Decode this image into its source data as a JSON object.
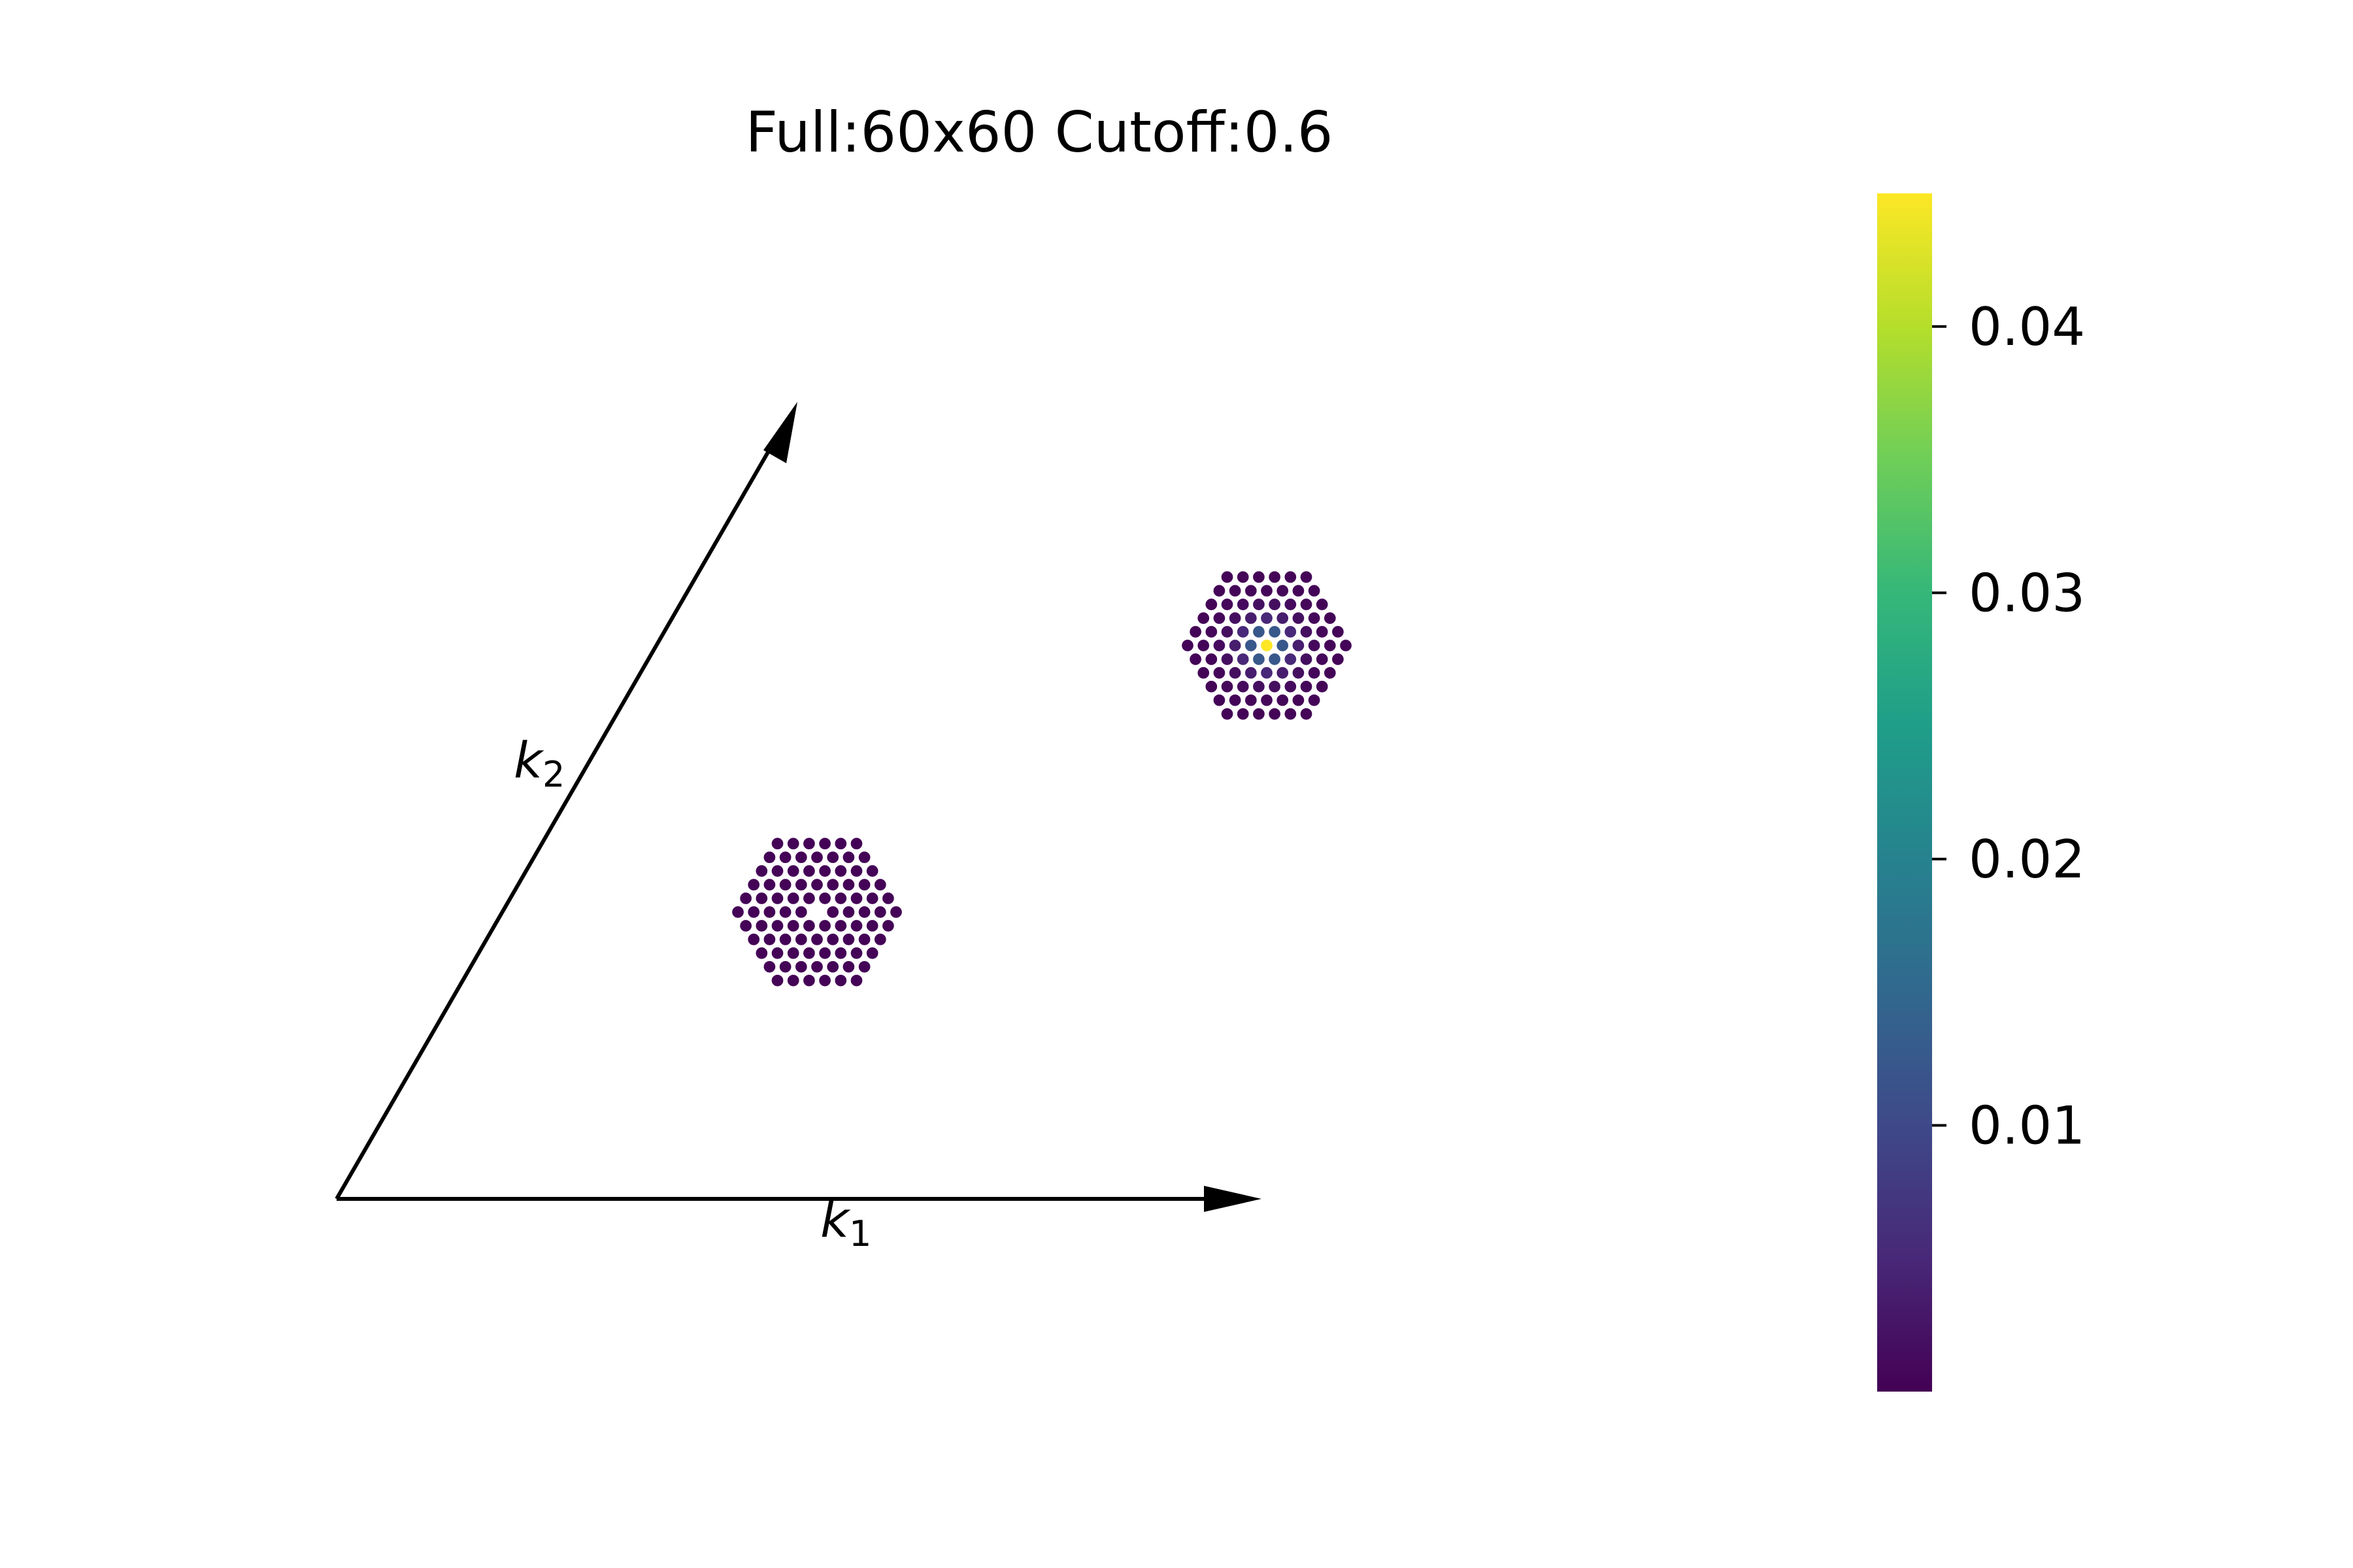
{
  "chart_data": {
    "type": "scatter",
    "title": "Full:60x60 Cutoff:0.6",
    "grid": false,
    "axes_visible": false,
    "lattice": {
      "type": "triangular",
      "grid_size": [
        60,
        60
      ]
    },
    "basis_vectors": [
      {
        "name": "k1",
        "label": "k",
        "subscript": "1",
        "direction": [
          1,
          0
        ]
      },
      {
        "name": "k2",
        "label": "k",
        "subscript": "2",
        "direction": [
          0.5,
          0.866
        ]
      }
    ],
    "clusters": [
      {
        "name": "lower-left cluster",
        "center_value": null,
        "edge_value": 0.0003,
        "missing_center": true
      },
      {
        "name": "upper-right cluster",
        "center_value": 0.045,
        "edge_value": 0.0003,
        "missing_center": false
      }
    ],
    "colorbar": {
      "colormap": "viridis",
      "min": 0.0,
      "max": 0.045,
      "ticks": [
        0.01,
        0.02,
        0.03,
        0.04
      ],
      "tick_labels": [
        "0.01",
        "0.02",
        "0.03",
        "0.04"
      ],
      "position": "right"
    },
    "colormap_stops": [
      "#440154",
      "#482878",
      "#3e4989",
      "#31688e",
      "#26828e",
      "#1f9e89",
      "#35b779",
      "#6ece58",
      "#b5de2b",
      "#fde725"
    ],
    "colors": {
      "arrow": "#000000",
      "marker_edge": "#ffffff"
    }
  }
}
